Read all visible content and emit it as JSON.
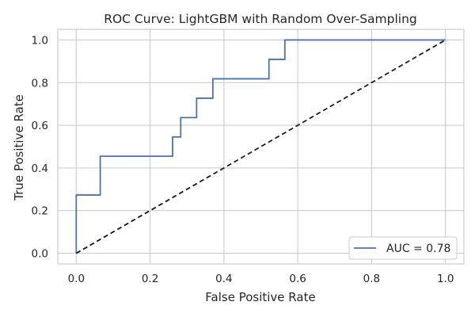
{
  "chart_data": {
    "type": "line",
    "title": "ROC Curve: LightGBM with Random Over-Sampling",
    "xlabel": "False Positive Rate",
    "ylabel": "True Positive Rate",
    "xlim": [
      -0.05,
      1.05
    ],
    "ylim": [
      -0.05,
      1.05
    ],
    "xticks": [
      0.0,
      0.2,
      0.4,
      0.6,
      0.8,
      1.0
    ],
    "xtick_labels": [
      "0.0",
      "0.2",
      "0.4",
      "0.6",
      "0.8",
      "1.0"
    ],
    "yticks": [
      0.0,
      0.2,
      0.4,
      0.6,
      0.8,
      1.0
    ],
    "ytick_labels": [
      "0.0",
      "0.2",
      "0.4",
      "0.6",
      "0.8",
      "1.0"
    ],
    "grid": true,
    "legend_position": "lower-right",
    "series": [
      {
        "name": "AUC = 0.78",
        "color": "#4c72b0",
        "style": "solid",
        "x": [
          0.0,
          0.0,
          0.065,
          0.065,
          0.261,
          0.261,
          0.283,
          0.283,
          0.326,
          0.326,
          0.37,
          0.37,
          0.522,
          0.522,
          0.565,
          0.565,
          1.0
        ],
        "y": [
          0.0,
          0.273,
          0.273,
          0.455,
          0.455,
          0.545,
          0.545,
          0.636,
          0.636,
          0.727,
          0.727,
          0.818,
          0.818,
          0.909,
          0.909,
          1.0,
          1.0
        ]
      },
      {
        "color": "#1a1a1a",
        "style": "dashed",
        "x": [
          0.0,
          1.0
        ],
        "y": [
          0.0,
          1.0
        ]
      }
    ]
  }
}
